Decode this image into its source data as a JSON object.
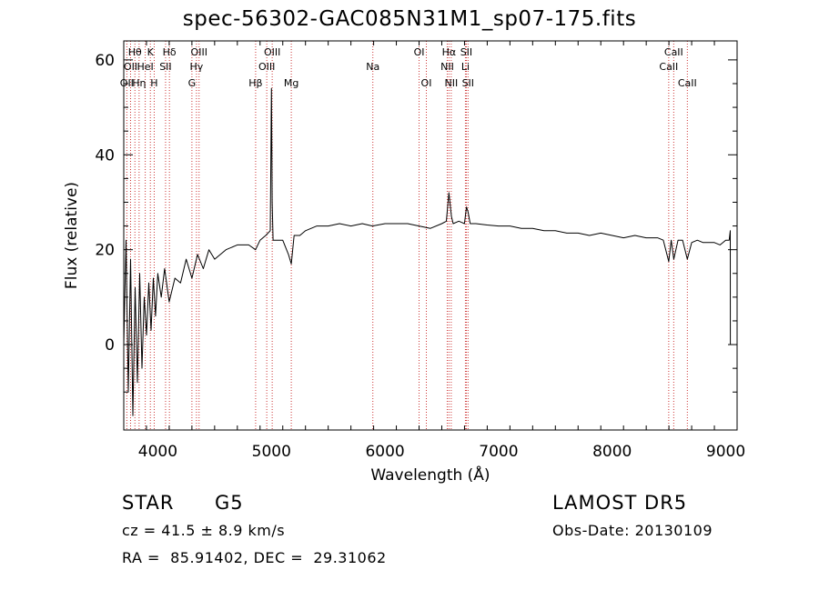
{
  "chart_data": {
    "type": "line",
    "title": "spec-56302-GAC085N31M1_sp07-175.fits",
    "xlabel": "Wavelength (Å)",
    "ylabel": "Flux (relative)",
    "xlim": [
      3700,
      9100
    ],
    "ylim": [
      -18,
      64
    ],
    "xticks": [
      4000,
      5000,
      6000,
      7000,
      8000,
      9000
    ],
    "yticks": [
      0,
      20,
      40,
      60
    ],
    "grid": false,
    "line_color": "#000000",
    "marker_color": "#cc3333",
    "series": [
      {
        "x": [
          3700,
          3720,
          3740,
          3760,
          3780,
          3800,
          3820,
          3840,
          3860,
          3880,
          3900,
          3920,
          3940,
          3960,
          3980,
          4000,
          4030,
          4060,
          4100,
          4150,
          4200,
          4250,
          4300,
          4350,
          4400,
          4450,
          4500,
          4600,
          4700,
          4800,
          4860,
          4900,
          4950,
          4990,
          5000,
          5007,
          5015,
          5050,
          5100,
          5150,
          5175,
          5200,
          5250,
          5300,
          5400,
          5500,
          5600,
          5700,
          5800,
          5890,
          6000,
          6100,
          6200,
          6300,
          6400,
          6500,
          6540,
          6563,
          6585,
          6600,
          6650,
          6700,
          6717,
          6731,
          6750,
          6800,
          6900,
          7000,
          7100,
          7200,
          7300,
          7400,
          7500,
          7600,
          7700,
          7800,
          7900,
          8000,
          8100,
          8200,
          8300,
          8400,
          8450,
          8498,
          8520,
          8542,
          8580,
          8620,
          8662,
          8700,
          8750,
          8800,
          8850,
          8900,
          8950,
          9000,
          9030,
          9040,
          9041
        ],
        "y": [
          0,
          22,
          -10,
          18,
          -15,
          12,
          -8,
          15,
          -5,
          10,
          2,
          13,
          3,
          14,
          6,
          15,
          10,
          16,
          9,
          14,
          13,
          18,
          14,
          19,
          16,
          20,
          18,
          20,
          21,
          21,
          20,
          22,
          23,
          24,
          54,
          30,
          22,
          22,
          22,
          19,
          17,
          23,
          23,
          24,
          25,
          25,
          25.5,
          25,
          25.5,
          25,
          25.5,
          25.5,
          25.5,
          25,
          24.5,
          25.5,
          26,
          32,
          27,
          25.5,
          26,
          25.5,
          29,
          28,
          25.5,
          25.5,
          25.2,
          25,
          25,
          24.5,
          24.5,
          24,
          24,
          23.5,
          23.5,
          23,
          23.5,
          23,
          22.5,
          23,
          22.5,
          22.5,
          22,
          17.5,
          22,
          18,
          22,
          22,
          18,
          21.5,
          22,
          21.5,
          21.5,
          21.5,
          21,
          22,
          22,
          24,
          0
        ]
      }
    ],
    "line_markers": [
      {
        "x": 3727,
        "label": "OII",
        "row": 3
      },
      {
        "x": 3760,
        "label": "OII",
        "row": 2
      },
      {
        "x": 3798,
        "label": "Hθ",
        "row": 1
      },
      {
        "x": 3835,
        "label": "Hη",
        "row": 3
      },
      {
        "x": 3889,
        "label": "HeI",
        "row": 2
      },
      {
        "x": 3934,
        "label": "K",
        "row": 1
      },
      {
        "x": 3968,
        "label": "H",
        "row": 3
      },
      {
        "x": 4068,
        "label": "SII",
        "row": 2
      },
      {
        "x": 4102,
        "label": "Hδ",
        "row": 1
      },
      {
        "x": 4300,
        "label": "G",
        "row": 3
      },
      {
        "x": 4340,
        "label": "Hγ",
        "row": 2
      },
      {
        "x": 4363,
        "label": "OIII",
        "row": 1
      },
      {
        "x": 4861,
        "label": "Hβ",
        "row": 3
      },
      {
        "x": 4959,
        "label": "OIII",
        "row": 2
      },
      {
        "x": 5007,
        "label": "OIII",
        "row": 1
      },
      {
        "x": 5175,
        "label": "Mg",
        "row": 3
      },
      {
        "x": 5893,
        "label": "Na",
        "row": 2
      },
      {
        "x": 6300,
        "label": "OI",
        "row": 1
      },
      {
        "x": 6364,
        "label": "OI",
        "row": 3
      },
      {
        "x": 6548,
        "label": "NII",
        "row": 2
      },
      {
        "x": 6563,
        "label": "Hα",
        "row": 1
      },
      {
        "x": 6583,
        "label": "NII",
        "row": 3
      },
      {
        "x": 6708,
        "label": "Li",
        "row": 2
      },
      {
        "x": 6716,
        "label": "SII",
        "row": 1
      },
      {
        "x": 6731,
        "label": "SII",
        "row": 3
      },
      {
        "x": 8498,
        "label": "CaII",
        "row": 2
      },
      {
        "x": 8542,
        "label": "CaII",
        "row": 1
      },
      {
        "x": 8662,
        "label": "CaII",
        "row": 3
      }
    ]
  },
  "info": {
    "object_type": "STAR",
    "subclass": "G5",
    "survey": "LAMOST DR5",
    "cz": "cz = 41.5 ± 8.9 km/s",
    "obs_date": "Obs-Date: 20130109",
    "coords": "RA =  85.91402, DEC =  29.31062"
  }
}
